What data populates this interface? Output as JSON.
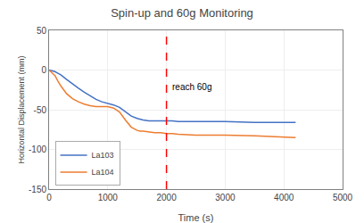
{
  "chart_data": {
    "type": "line",
    "title": "Spin-up and 60g Monitoring",
    "xlabel": "Time (s)",
    "ylabel": "Horizontal Displacement (mm)",
    "x": [
      0,
      50,
      100,
      150,
      200,
      300,
      400,
      500,
      600,
      700,
      800,
      900,
      1000,
      1100,
      1200,
      1300,
      1400,
      1500,
      1550,
      1600,
      1700,
      1800,
      1900,
      2000,
      2100,
      2200,
      2500,
      3000,
      3500,
      4000,
      4200
    ],
    "series": [
      {
        "name": "La103",
        "color": "#4472C4",
        "values": [
          0,
          -1,
          -2,
          -4,
          -6,
          -12,
          -18,
          -23,
          -28,
          -33,
          -37,
          -40,
          -42,
          -44,
          -47,
          -52,
          -58,
          -61,
          -62,
          -63,
          -64,
          -64,
          -64,
          -64,
          -64,
          -65,
          -65,
          -65,
          -66,
          -66,
          -66
        ]
      },
      {
        "name": "La104",
        "color": "#ED7D31",
        "values": [
          0,
          -3,
          -7,
          -14,
          -20,
          -30,
          -36,
          -40,
          -43,
          -45,
          -46,
          -46,
          -46,
          -48,
          -53,
          -63,
          -72,
          -76,
          -77,
          -77,
          -78,
          -79,
          -79,
          -80,
          -80,
          -81,
          -82,
          -82,
          -83,
          -84,
          -85
        ]
      }
    ],
    "vline": {
      "x": 2000,
      "label": "reach 60g",
      "color": "#FF0000",
      "line_style": "dashed"
    },
    "xlim": [
      0,
      5000
    ],
    "xticks": [
      0,
      1000,
      2000,
      3000,
      4000,
      5000
    ],
    "ylim": [
      -150,
      50
    ],
    "yticks": [
      50,
      0,
      -50,
      -100,
      -150
    ],
    "grid": true,
    "legend": "lower left"
  }
}
